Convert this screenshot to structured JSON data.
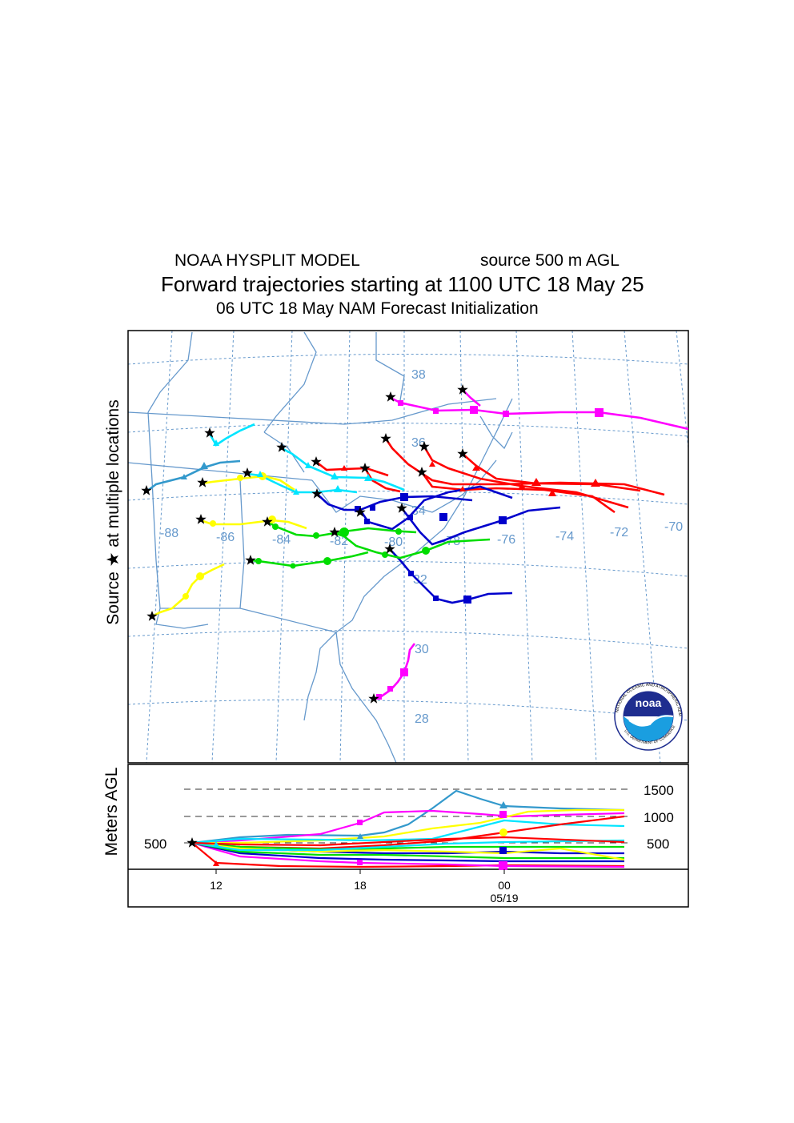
{
  "header": {
    "model": "NOAA HYSPLIT MODEL",
    "source": "source 500 m AGL",
    "title": "Forward trajectories starting at 1100 UTC 18 May 25",
    "subtitle": "06 UTC 18 May    NAM   Forecast Initialization"
  },
  "map": {
    "side_label": "Source ★  at multiple locations",
    "lon_labels": [
      "-88",
      "-86",
      "-84",
      "-82",
      "-80",
      "-78",
      "-76",
      "-74",
      "-72",
      "-70"
    ],
    "lat_labels": [
      "38",
      "36",
      "34",
      "32",
      "30",
      "28"
    ],
    "colors": {
      "red": "#ff0000",
      "blue": "#0000cc",
      "green": "#00dd00",
      "yellow": "#ffff00",
      "cyan": "#00e5ff",
      "magenta": "#ff00ff",
      "steelblue": "#3399cc",
      "grid": "#6699cc"
    }
  },
  "logo": {
    "text": "noaa",
    "ring_text": "NATIONAL OCEANIC AND ATMOSPHERIC ADMINISTRATION",
    "bottom_text": "U.S. DEPARTMENT OF COMMERCE"
  },
  "altitude_panel": {
    "ylabel": "Meters AGL",
    "source_height": "500",
    "levels": [
      "1500",
      "1000",
      "500"
    ],
    "time_labels": [
      "12",
      "18",
      "00"
    ],
    "date_label": "05/19"
  }
}
